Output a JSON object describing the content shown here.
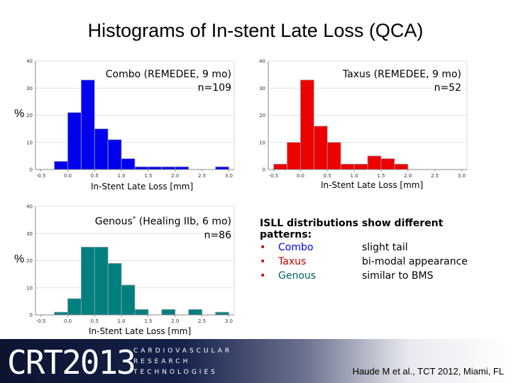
{
  "title": "Histograms of In-stent Late Loss (QCA)",
  "percent_label": "%",
  "charts": [
    {
      "annot_line1": "Combo (REMEDEE, 9 mo)",
      "annot_line2": "n=109",
      "xlabel": "In-Stent Late Loss [mm]",
      "show_y_label": true
    },
    {
      "annot_line1": "Taxus (REMEDEE, 9 mo)",
      "annot_line2": "n=52",
      "xlabel": "In-Stent Late Loss [mm]",
      "show_y_label": false
    },
    {
      "annot_line1": "Genous",
      "annot_sup": "*",
      "annot_line1_rest": " (Healing IIb, 6 mo)",
      "annot_line2": "n=86",
      "xlabel": "In-Stent Late Loss [mm]",
      "show_y_label": true
    }
  ],
  "chart_data": [
    {
      "type": "bar",
      "title": "",
      "color": "#0000ee",
      "bin_width": 0.25,
      "bins": [
        -0.125,
        0.125,
        0.375,
        0.625,
        0.875,
        1.125,
        1.375,
        1.625,
        1.875,
        2.125,
        2.375,
        2.625,
        2.875
      ],
      "values": [
        3,
        21,
        33,
        15,
        11,
        4,
        1,
        1,
        1,
        1,
        0,
        0,
        1
      ],
      "xlim": [
        -0.6,
        3.1
      ],
      "ylim": [
        0,
        40
      ],
      "xticks": [
        "-0.5",
        "0.0",
        "0.5",
        "1.0",
        "1.5",
        "2.0",
        "2.5",
        "3.0"
      ],
      "yticks": [
        "0",
        "10",
        "20",
        "30",
        "40"
      ]
    },
    {
      "type": "bar",
      "title": "",
      "color": "#ee0000",
      "bin_width": 0.25,
      "bins": [
        -0.375,
        -0.125,
        0.125,
        0.375,
        0.625,
        0.875,
        1.125,
        1.375,
        1.625,
        1.875
      ],
      "values": [
        2,
        10,
        33,
        16,
        10,
        2,
        2,
        5,
        4,
        2
      ],
      "xlim": [
        -0.6,
        3.1
      ],
      "ylim": [
        0,
        40
      ],
      "xticks": [
        "-0.5",
        "0.0",
        "0.5",
        "1.0",
        "1.5",
        "2.0",
        "2.5",
        "3.0"
      ],
      "yticks": [
        "0",
        "10",
        "20",
        "30",
        "40"
      ]
    },
    {
      "type": "bar",
      "title": "",
      "color": "#007f7f",
      "bin_width": 0.25,
      "bins": [
        -0.125,
        0.125,
        0.375,
        0.625,
        0.875,
        1.125,
        1.375,
        1.625,
        1.875,
        2.125,
        2.375,
        2.625,
        2.875
      ],
      "values": [
        1,
        6,
        25,
        25,
        19,
        11,
        2,
        0,
        2,
        0,
        2,
        0,
        1
      ],
      "xlim": [
        -0.6,
        3.1
      ],
      "ylim": [
        0,
        40
      ],
      "xticks": [
        "-0.5",
        "0.0",
        "0.5",
        "1.0",
        "1.5",
        "2.0",
        "2.5",
        "3.0"
      ],
      "yticks": [
        "0",
        "10",
        "20",
        "30",
        "40"
      ]
    }
  ],
  "notes": {
    "heading": "ISLL distributions show different patterns:",
    "bullet": "•",
    "bullet_color": "#c00000",
    "items": [
      {
        "name": "Combo",
        "desc": "slight tail",
        "color": "#0000ff"
      },
      {
        "name": "Taxus",
        "desc": "bi-modal appearance",
        "color": "#c00000"
      },
      {
        "name": "Genous",
        "desc": "similar to BMS",
        "color": "#006666"
      }
    ]
  },
  "footer": {
    "logo": "CRT2013",
    "logo_line1": "CARDIOVASCULAR",
    "logo_line2": "RESEARCH",
    "logo_line3": "TECHNOLOGIES",
    "citation": "Haude M et al., TCT 2012, Miami, FL"
  }
}
